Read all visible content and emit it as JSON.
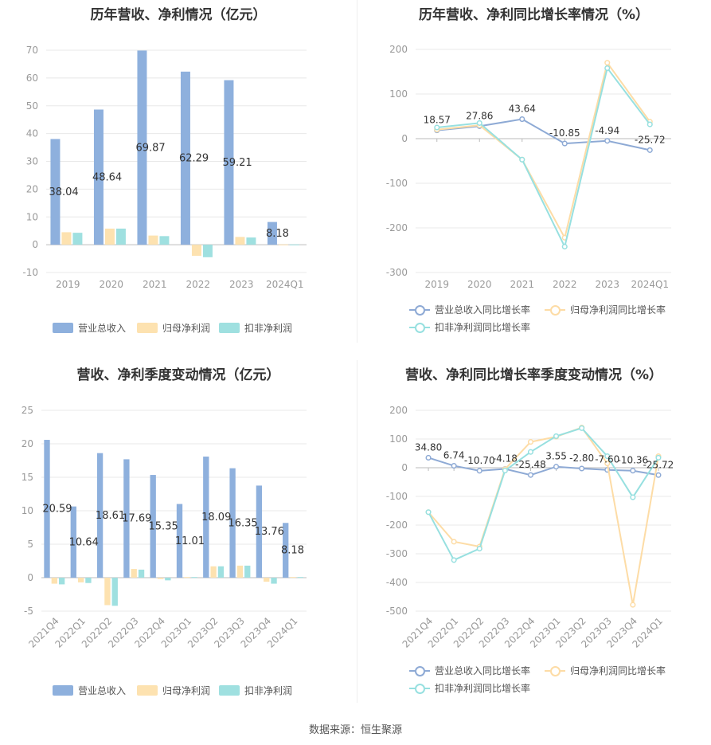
{
  "source_label": "数据来源：恒生聚源",
  "colors": {
    "revenue": "#8eb0dd",
    "net_profit": "#fde2b0",
    "deducted": "#9fe0e0",
    "revenue_line": "#8eaad5",
    "net_line": "#fddca6",
    "deducted_line": "#97e0e0",
    "grid": "#e8e8e8",
    "axis_text": "#999999",
    "label_text": "#333333"
  },
  "chart_data": [
    {
      "type": "bar",
      "title": "历年营收、净利情况（亿元）",
      "categories": [
        "2019",
        "2020",
        "2021",
        "2022",
        "2023",
        "2024Q1"
      ],
      "ylim": [
        -10,
        70
      ],
      "yticks": [
        -10,
        0,
        10,
        20,
        30,
        40,
        50,
        60,
        70
      ],
      "series": [
        {
          "name": "营业总收入",
          "values": [
            38.04,
            48.64,
            69.87,
            62.29,
            59.21,
            8.18
          ],
          "labels": [
            "38.04",
            "48.64",
            "69.87",
            "62.29",
            "59.21",
            "8.18"
          ]
        },
        {
          "name": "归母净利润",
          "values": [
            4.5,
            5.8,
            3.3,
            -4.0,
            2.8,
            0.1
          ]
        },
        {
          "name": "扣非净利润",
          "values": [
            4.3,
            5.8,
            3.1,
            -4.5,
            2.6,
            0.1
          ]
        }
      ]
    },
    {
      "type": "line",
      "title": "历年营收、净利同比增长率情况（%）",
      "categories": [
        "2019",
        "2020",
        "2021",
        "2022",
        "2023",
        "2024Q1"
      ],
      "ylim": [
        -300,
        200
      ],
      "yticks": [
        -300,
        -200,
        -100,
        0,
        100,
        200
      ],
      "series": [
        {
          "name": "营业总收入同比增长率",
          "values": [
            18.57,
            27.86,
            43.64,
            -10.85,
            -4.94,
            -25.72
          ],
          "labels": [
            "18.57",
            "27.86",
            "43.64",
            "-10.85",
            "-4.94",
            "-25.72"
          ]
        },
        {
          "name": "归母净利润同比增长率",
          "values": [
            20,
            30,
            -47,
            -222,
            170,
            38
          ]
        },
        {
          "name": "扣非净利润同比增长率",
          "values": [
            25,
            35,
            -47,
            -242,
            158,
            32
          ]
        }
      ]
    },
    {
      "type": "bar",
      "title": "营收、净利季度变动情况（亿元）",
      "categories": [
        "2021Q4",
        "2022Q1",
        "2022Q2",
        "2022Q3",
        "2022Q4",
        "2023Q1",
        "2023Q2",
        "2023Q3",
        "2023Q4",
        "2024Q1"
      ],
      "ylim": [
        -5,
        25
      ],
      "yticks": [
        -5,
        0,
        5,
        10,
        15,
        20,
        25
      ],
      "series": [
        {
          "name": "营业总收入",
          "values": [
            20.59,
            10.64,
            18.61,
            17.69,
            15.35,
            11.01,
            18.09,
            16.35,
            13.76,
            8.18
          ],
          "labels": [
            "20.59",
            "10.64",
            "18.61",
            "17.69",
            "15.35",
            "11.01",
            "18.09",
            "16.35",
            "13.76",
            "8.18"
          ]
        },
        {
          "name": "归母净利润",
          "values": [
            -0.9,
            -0.7,
            -4.1,
            1.3,
            -0.2,
            0.1,
            1.7,
            1.8,
            -0.6,
            0.1
          ]
        },
        {
          "name": "扣非净利润",
          "values": [
            -1.0,
            -0.8,
            -4.2,
            1.2,
            -0.4,
            0.1,
            1.7,
            1.8,
            -0.9,
            0.1
          ]
        }
      ]
    },
    {
      "type": "line",
      "title": "营收、净利同比增长率季度变动情况（%）",
      "categories": [
        "2021Q4",
        "2022Q1",
        "2022Q2",
        "2022Q3",
        "2022Q4",
        "2023Q1",
        "2023Q2",
        "2023Q3",
        "2023Q4",
        "2024Q1"
      ],
      "ylim": [
        -500,
        200
      ],
      "yticks": [
        -500,
        -400,
        -300,
        -200,
        -100,
        0,
        100,
        200
      ],
      "series": [
        {
          "name": "营业总收入同比增长率",
          "values": [
            34.8,
            6.74,
            -10.7,
            -4.18,
            -25.48,
            3.55,
            -2.8,
            -7.6,
            -10.36,
            -25.72
          ],
          "labels": [
            "34.80",
            "6.74",
            "-10.70",
            "-4.18",
            "-25.48",
            "3.55",
            "-2.80",
            "-7.60",
            "-10.36",
            "-25.72"
          ]
        },
        {
          "name": "归母净利润同比增长率",
          "values": [
            -155,
            -258,
            -275,
            -5,
            90,
            108,
            140,
            15,
            -478,
            40
          ]
        },
        {
          "name": "扣非净利润同比增长率",
          "values": [
            -155,
            -322,
            -282,
            -10,
            55,
            110,
            138,
            40,
            -103,
            35
          ]
        }
      ]
    }
  ]
}
